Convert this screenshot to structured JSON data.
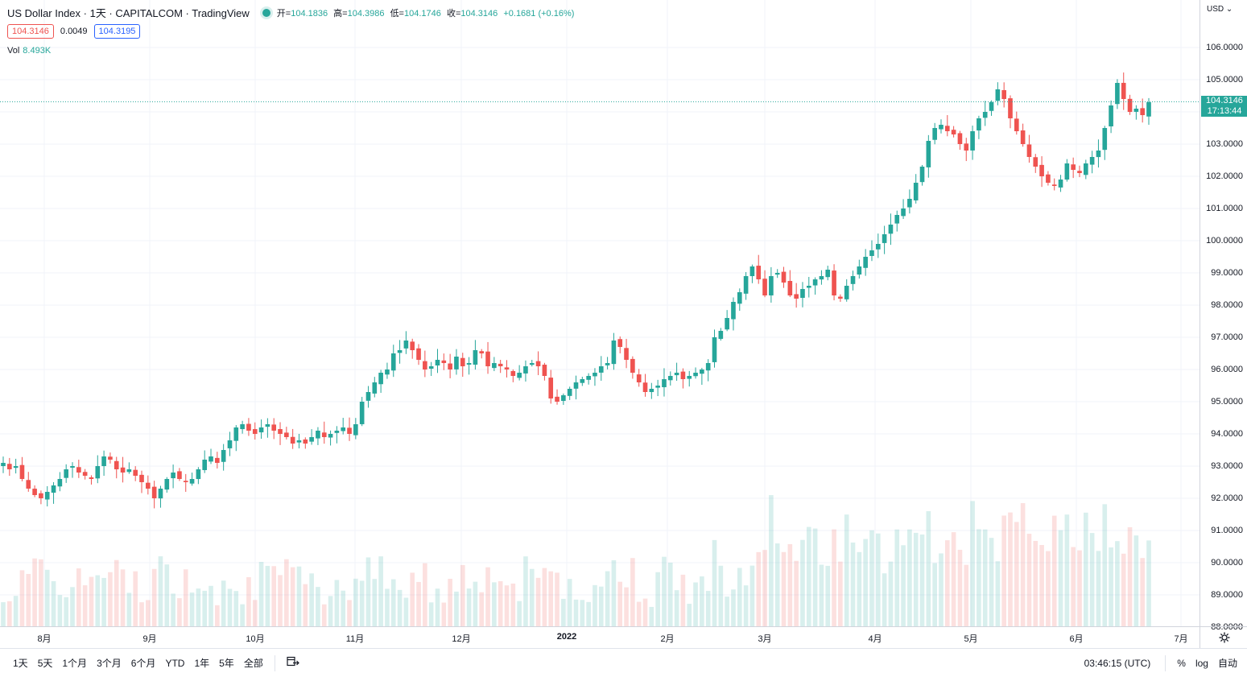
{
  "legend": {
    "title": "US Dollar Index · 1天 · CAPITALCOM · TradingView",
    "ohlc": [
      {
        "label": "开=",
        "value": "104.1836"
      },
      {
        "label": "高=",
        "value": "104.3986"
      },
      {
        "label": "低=",
        "value": "104.1746"
      },
      {
        "label": "收=",
        "value": "104.3146"
      }
    ],
    "change": "+0.1681 (+0.16%)",
    "bid": "104.3146",
    "spread": "0.0049",
    "ask": "104.3195",
    "vol_label": "Vol",
    "vol_value": "8.493K"
  },
  "price_axis": {
    "currency": "USD",
    "labels": [
      "106.0000",
      "105.0000",
      "104.0000",
      "103.0000",
      "102.0000",
      "101.0000",
      "100.0000",
      "99.0000",
      "98.0000",
      "97.0000",
      "96.0000",
      "95.0000",
      "94.0000",
      "93.0000",
      "92.0000",
      "91.0000",
      "90.0000",
      "89.0000",
      "88.0000"
    ],
    "last_price": "104.3146",
    "countdown": "17:13:44"
  },
  "time_axis": {
    "labels": [
      "8月",
      "9月",
      "10月",
      "11月",
      "12月",
      "2022",
      "2月",
      "3月",
      "4月",
      "5月",
      "6月",
      "7月"
    ]
  },
  "toolbar": {
    "ranges": [
      "1天",
      "5天",
      "1个月",
      "3个月",
      "6个月",
      "YTD",
      "1年",
      "5年",
      "全部"
    ],
    "clock": "03:46:15 (UTC)",
    "percent": "%",
    "log": "log",
    "auto": "自动"
  },
  "colors": {
    "up": "#26a69a",
    "down": "#ef5350",
    "grid": "#f0f3fa"
  },
  "chart_data": {
    "type": "candlestick",
    "ylim": [
      88,
      106.5
    ],
    "close_series": [
      93.1,
      92.9,
      93.0,
      92.6,
      92.3,
      92.1,
      92.0,
      92.2,
      92.4,
      92.6,
      92.9,
      93.0,
      92.8,
      92.7,
      92.6,
      93.0,
      93.3,
      93.2,
      92.9,
      92.8,
      92.9,
      92.7,
      92.5,
      92.3,
      92.0,
      92.3,
      92.6,
      92.8,
      92.6,
      92.5,
      92.6,
      92.9,
      93.2,
      93.3,
      93.1,
      93.5,
      93.8,
      94.2,
      94.3,
      94.1,
      94.0,
      94.2,
      94.3,
      94.1,
      94.0,
      93.9,
      93.7,
      93.8,
      93.7,
      93.9,
      94.1,
      93.9,
      94.0,
      94.1,
      94.2,
      94.0,
      94.3,
      95.0,
      95.3,
      95.6,
      95.9,
      96.0,
      96.5,
      96.6,
      96.9,
      96.6,
      96.3,
      96.0,
      96.1,
      96.3,
      96.2,
      96.0,
      96.4,
      96.1,
      96.2,
      96.6,
      96.5,
      96.1,
      96.2,
      96.1,
      96.0,
      95.8,
      95.9,
      96.1,
      96.2,
      96.1,
      95.8,
      95.1,
      95.0,
      95.2,
      95.4,
      95.6,
      95.7,
      95.8,
      95.9,
      96.1,
      96.2,
      96.9,
      96.7,
      96.3,
      95.9,
      95.6,
      95.3,
      95.4,
      95.5,
      95.7,
      95.8,
      95.9,
      95.7,
      95.8,
      95.9,
      96.0,
      96.2,
      97.0,
      97.2,
      97.6,
      98.1,
      98.4,
      98.9,
      99.2,
      98.8,
      98.3,
      98.9,
      99.0,
      98.7,
      98.3,
      98.2,
      98.5,
      98.6,
      98.8,
      98.9,
      99.1,
      98.3,
      98.2,
      98.6,
      98.9,
      99.2,
      99.5,
      99.7,
      99.9,
      100.2,
      100.5,
      100.8,
      101.0,
      101.3,
      101.8,
      102.3,
      103.1,
      103.5,
      103.6,
      103.4,
      103.3,
      103.0,
      102.8,
      103.4,
      103.8,
      104.0,
      104.3,
      104.7,
      104.4,
      103.8,
      103.4,
      103.0,
      102.6,
      102.3,
      102.0,
      101.8,
      101.7,
      101.9,
      102.4,
      102.2,
      102.1,
      102.4,
      102.6,
      102.8,
      103.5,
      104.2,
      104.9,
      104.4,
      104.0,
      104.1,
      103.9,
      104.3
    ]
  }
}
